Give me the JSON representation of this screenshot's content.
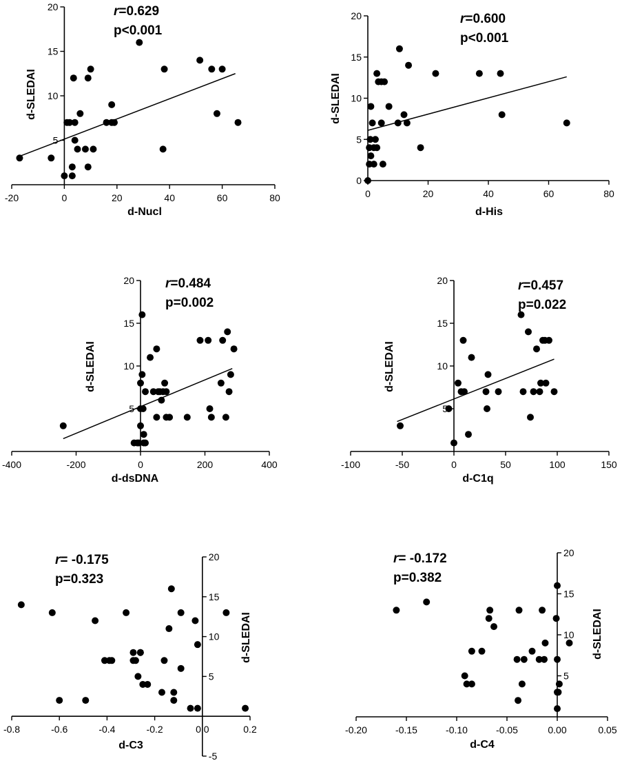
{
  "chart_data": [
    {
      "type": "scatter",
      "xlabel": "d-Nucl",
      "ylabel": "d-SLEDAI",
      "stat_r_prefix": "r",
      "stat_r_value": "=0.629",
      "stat_p": "p<0.001",
      "xlim": [
        -20,
        80
      ],
      "ylim": [
        0,
        20
      ],
      "xticks": [
        -20,
        0,
        20,
        40,
        60,
        80
      ],
      "yticks": [
        5,
        10,
        15,
        20
      ],
      "y_axis_at_x": 0,
      "x_axis_at_y": 0,
      "fit": {
        "x": [
          -17,
          65
        ],
        "y": [
          3.2,
          12.5
        ]
      },
      "points": {
        "x": [
          -17,
          -5,
          0,
          1,
          2,
          3,
          3,
          3.5,
          4,
          4,
          5,
          6,
          8,
          9,
          9,
          10,
          11,
          16,
          18,
          18,
          19,
          28.5,
          37.5,
          38,
          51.5,
          56,
          58,
          60,
          66
        ],
        "y": [
          3,
          3,
          1,
          7,
          7,
          1,
          2,
          12,
          7,
          5,
          4,
          8,
          4,
          2,
          12,
          13,
          4,
          7,
          7,
          9,
          7,
          16,
          4,
          13,
          14,
          13,
          8,
          13,
          7
        ]
      }
    },
    {
      "type": "scatter",
      "xlabel": "d-His",
      "ylabel": "d-SLEDAI",
      "stat_r_prefix": "r",
      "stat_r_value": "=0.600",
      "stat_p": "p<0.001",
      "xlim": [
        0,
        80
      ],
      "ylim": [
        0,
        20
      ],
      "xticks": [
        0,
        20,
        40,
        60,
        80
      ],
      "yticks": [
        0,
        5,
        10,
        15,
        20
      ],
      "y_axis_at_x": 0,
      "x_axis_at_y": 0,
      "fit": {
        "x": [
          0,
          66
        ],
        "y": [
          6.1,
          12.6
        ]
      },
      "points": {
        "x": [
          0,
          0.5,
          0.5,
          0.8,
          1,
          1,
          1.5,
          2,
          2,
          2.5,
          3,
          3,
          3.5,
          4.5,
          4.5,
          5,
          5.5,
          7,
          10,
          10.5,
          12,
          13,
          13.5,
          17.5,
          22.5,
          37,
          44,
          44.5,
          66
        ],
        "y": [
          0,
          2,
          4,
          5,
          3,
          9,
          7,
          2,
          4,
          5,
          13,
          4,
          12,
          12,
          7,
          2,
          12,
          9,
          7,
          16,
          8,
          7,
          14,
          4,
          13,
          13,
          13,
          8,
          7
        ]
      }
    },
    {
      "type": "scatter",
      "xlabel": "d-dsDNA",
      "ylabel": "d-SLEDAI",
      "stat_r_prefix": "r",
      "stat_r_value": "=0.484",
      "stat_p": "p=0.002",
      "xlim": [
        -400,
        400
      ],
      "ylim": [
        0,
        20
      ],
      "xticks": [
        -400,
        -200,
        0,
        200,
        400
      ],
      "yticks": [
        5,
        10,
        15,
        20
      ],
      "y_axis_at_x": 0,
      "x_axis_at_y": 0,
      "fit": {
        "x": [
          -240,
          285
        ],
        "y": [
          1.5,
          9.7
        ]
      },
      "points": {
        "x": [
          -240,
          -20,
          -10,
          -5,
          0,
          0,
          0,
          5,
          5,
          8,
          10,
          10,
          15,
          15,
          30,
          40,
          50,
          50,
          55,
          60,
          65,
          70,
          75,
          80,
          80,
          90,
          145,
          185,
          210,
          215,
          220,
          250,
          255,
          265,
          270,
          275,
          280,
          290
        ],
        "y": [
          3,
          1,
          1,
          1,
          3,
          5,
          8,
          16,
          9,
          5,
          2,
          1,
          1,
          7,
          11,
          7,
          12,
          4,
          7,
          7,
          6,
          7,
          8,
          7,
          4,
          4,
          4,
          13,
          13,
          5,
          4,
          8,
          13,
          4,
          14,
          7,
          9,
          12
        ]
      }
    },
    {
      "type": "scatter",
      "xlabel": "d-C1q",
      "ylabel": "d-SLEDAI",
      "stat_r_prefix": "r",
      "stat_r_value": "=0.457",
      "stat_p": "p=0.022",
      "xlim": [
        -100,
        150
      ],
      "ylim": [
        0,
        20
      ],
      "xticks": [
        -100,
        -50,
        0,
        50,
        100,
        150
      ],
      "yticks": [
        5,
        10,
        15,
        20
      ],
      "y_axis_at_x": 0,
      "x_axis_at_y": 0,
      "fit": {
        "x": [
          -55,
          97
        ],
        "y": [
          3.5,
          10.8
        ]
      },
      "points": {
        "x": [
          -52,
          -5,
          0,
          4,
          7,
          9,
          10,
          14,
          17,
          31,
          32,
          33,
          43,
          65,
          67,
          72,
          74,
          77,
          80,
          83,
          84,
          86,
          88,
          89,
          92,
          97
        ],
        "y": [
          3,
          5,
          1,
          8,
          7,
          13,
          7,
          2,
          11,
          7,
          5,
          9,
          7,
          16,
          7,
          14,
          4,
          7,
          12,
          7,
          8,
          13,
          13,
          8,
          13,
          7
        ]
      }
    },
    {
      "type": "scatter",
      "xlabel": "d-C3",
      "ylabel": "d-SLEDAI",
      "stat_r_prefix": "r",
      "stat_r_value": "= -0.175",
      "stat_p": "p=0.323",
      "xlim": [
        -0.8,
        0.2
      ],
      "ylim": [
        -5,
        20
      ],
      "xticks": [
        -0.8,
        -0.6,
        -0.4,
        -0.2,
        0.0,
        0.2
      ],
      "xtick_labels": [
        "-0.8",
        "-0.6",
        "-0.4",
        "-0.2",
        "0.0",
        "0.2"
      ],
      "yticks": [
        -5,
        5,
        10,
        15,
        20
      ],
      "y_axis_at_x": 0,
      "x_axis_at_y": 0,
      "y_axis_side": "right",
      "fit": null,
      "points": {
        "x": [
          -0.76,
          -0.63,
          -0.6,
          -0.49,
          -0.45,
          -0.41,
          -0.39,
          -0.38,
          -0.32,
          -0.29,
          -0.29,
          -0.28,
          -0.27,
          -0.26,
          -0.26,
          -0.25,
          -0.23,
          -0.17,
          -0.16,
          -0.14,
          -0.13,
          -0.12,
          -0.12,
          -0.09,
          -0.09,
          -0.05,
          -0.03,
          -0.02,
          -0.02,
          0.1,
          0.18
        ],
        "y": [
          14,
          13,
          2,
          2,
          12,
          7,
          7,
          7,
          13,
          8,
          7,
          7,
          5,
          8,
          8,
          4,
          4,
          3,
          7,
          11,
          16,
          3,
          2,
          13,
          6,
          1,
          12,
          9,
          1,
          13,
          1
        ]
      }
    },
    {
      "type": "scatter",
      "xlabel": "d-C4",
      "ylabel": "d-SLEDAI",
      "stat_r_prefix": "r",
      "stat_r_value": "= -0.172",
      "stat_p": "p=0.382",
      "xlim": [
        -0.2,
        0.05
      ],
      "ylim": [
        0,
        20
      ],
      "xticks": [
        -0.2,
        -0.15,
        -0.1,
        -0.05,
        0.0,
        0.05
      ],
      "xtick_labels": [
        "-0.20",
        "-0.15",
        "-0.10",
        "-0.05",
        "0.00",
        "0.05"
      ],
      "yticks": [
        5,
        10,
        15,
        20
      ],
      "y_axis_at_x": 0,
      "x_axis_at_y": 0,
      "y_axis_side": "right",
      "fit": null,
      "points": {
        "x": [
          -0.16,
          -0.13,
          -0.092,
          -0.09,
          -0.085,
          -0.085,
          -0.075,
          -0.068,
          -0.067,
          -0.063,
          -0.04,
          -0.039,
          -0.038,
          -0.035,
          -0.033,
          -0.025,
          -0.018,
          -0.015,
          -0.013,
          -0.012,
          -0.001,
          0.0,
          0.0,
          0.0,
          0.0,
          0.001,
          0.002,
          0.012
        ],
        "y": [
          13,
          14,
          5,
          4,
          8,
          4,
          8,
          12,
          13,
          11,
          7,
          2,
          13,
          4,
          7,
          8,
          7,
          13,
          7,
          9,
          12,
          1,
          3,
          7,
          16,
          3,
          4,
          9
        ]
      }
    }
  ]
}
